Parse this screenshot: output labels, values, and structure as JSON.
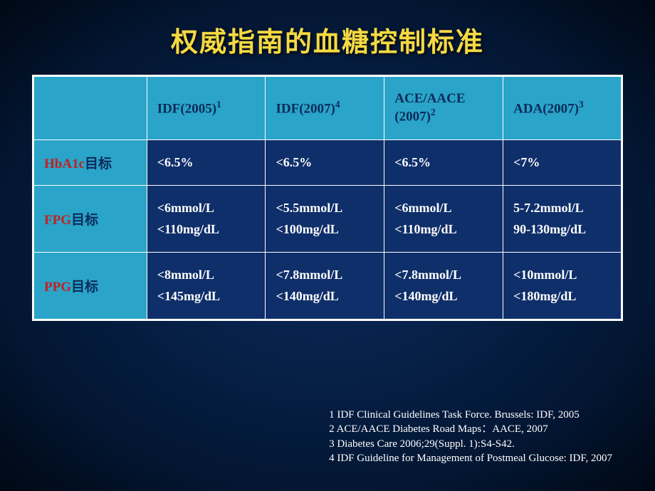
{
  "title": "权威指南的血糖控制标准",
  "columns": [
    {
      "label": "IDF(2005)",
      "sup": "1"
    },
    {
      "label": "IDF(2007)",
      "sup": "4"
    },
    {
      "label": "ACE/AACE (2007)",
      "sup": "2"
    },
    {
      "label": "ADA(2007)",
      "sup": "3"
    }
  ],
  "rows": [
    {
      "acronym": "HbA1c",
      "target": "目标",
      "cells": [
        "<6.5%",
        "<6.5%",
        "<6.5%",
        "<7%"
      ]
    },
    {
      "acronym": "FPG",
      "target": "目标",
      "cells": [
        "<6mmol/L\n<110mg/dL",
        "<5.5mmol/L\n<100mg/dL",
        "<6mmol/L\n<110mg/dL",
        "5-7.2mmol/L\n90-130mg/dL"
      ]
    },
    {
      "acronym": "PPG",
      "target": "目标",
      "cells": [
        "<8mmol/L\n<145mg/dL",
        "<7.8mmol/L\n<140mg/dL",
        "<7.8mmol/L\n<140mg/dL",
        "<10mmol/L\n<180mg/dL"
      ]
    }
  ],
  "references": [
    "1 IDF Clinical Guidelines Task Force. Brussels: IDF, 2005",
    "2 ACE/AACE Diabetes Road Maps：AACE, 2007",
    "3 Diabetes Care 2006;29(Suppl. 1):S4-S42.",
    "4 IDF Guideline for Management of Postmeal Glucose: IDF, 2007"
  ],
  "style": {
    "header_bg": "#2aa4c8",
    "header_text": "#0a2b5c",
    "cell_bg": "#0f2f6a",
    "cell_text": "#ffffff",
    "rowlabel_acronym_color": "#c22020",
    "title_color": "#f5d942",
    "border_color": "#ffffff",
    "background_gradient": [
      "#0a2b5c",
      "#031633",
      "#000814"
    ],
    "title_fontsize": 38,
    "header_fontsize": 19,
    "cell_fontsize": 18,
    "ref_fontsize": 15
  }
}
